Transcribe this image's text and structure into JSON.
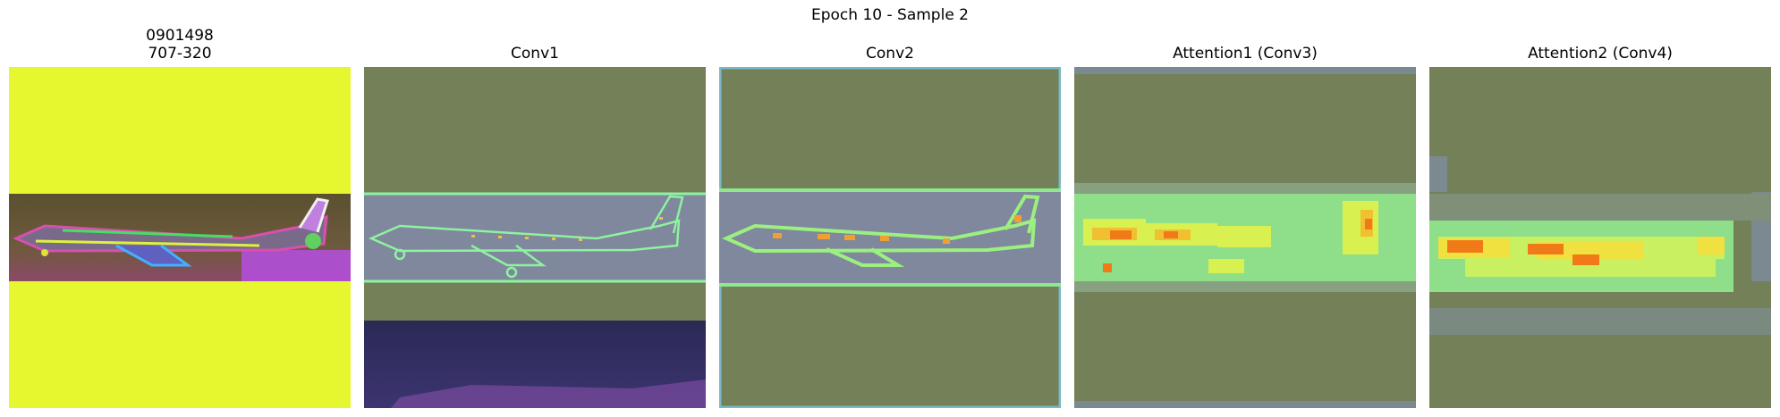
{
  "figure": {
    "title": "Epoch 10 - Sample 2"
  },
  "panels": [
    {
      "title_lines": [
        "0901498",
        "707-320"
      ],
      "colors": {
        "background": "#e6f72f",
        "band": "#5b4f3a",
        "accent": "#b54fe0"
      }
    },
    {
      "title_lines": [
        "Conv1"
      ],
      "colors": {
        "background": "#748058",
        "band": "#7f889c",
        "edge": "#8ef2a0"
      }
    },
    {
      "title_lines": [
        "Conv2"
      ],
      "colors": {
        "background": "#748058",
        "band": "#7f889c",
        "edge": "#9bf080"
      }
    },
    {
      "title_lines": [
        "Attention1 (Conv3)"
      ],
      "colors": {
        "background": "#748058",
        "band": "#8fde8a",
        "hot": "#f0a020"
      }
    },
    {
      "title_lines": [
        "Attention2 (Conv4)"
      ],
      "colors": {
        "background": "#748058",
        "band": "#c8f060",
        "hot": "#f07a18"
      }
    }
  ]
}
